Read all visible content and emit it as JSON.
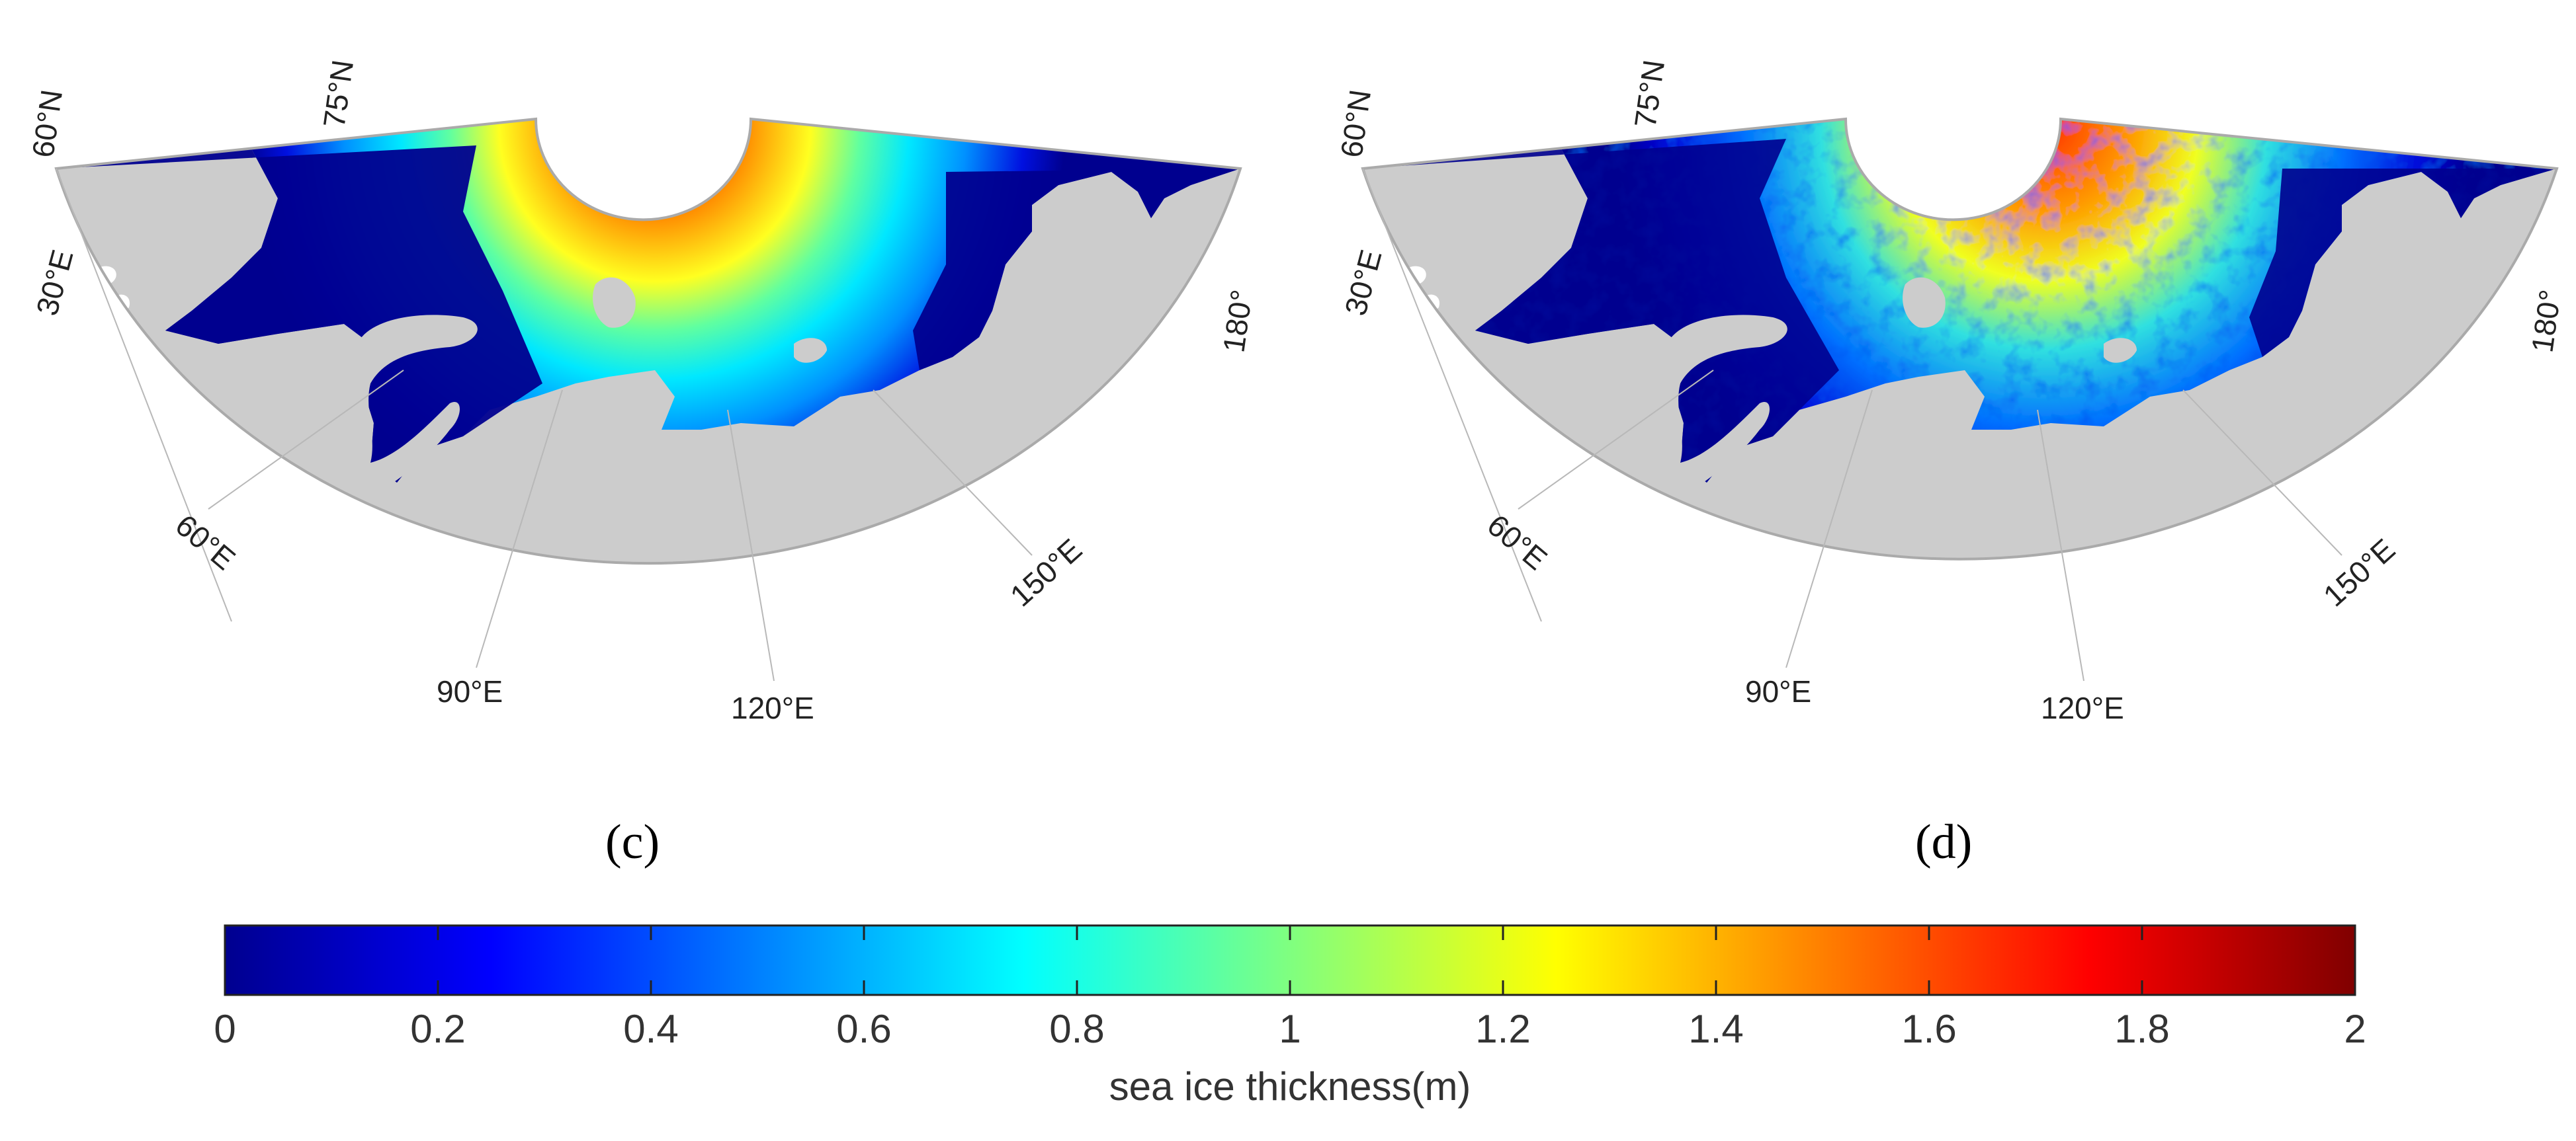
{
  "panels": [
    {
      "id": "c",
      "label": "(c)",
      "lat_labels": [
        "60°N",
        "75°N"
      ],
      "lon_labels": [
        "30°E",
        "60°E",
        "90°E",
        "120°E",
        "150°E",
        "180°"
      ]
    },
    {
      "id": "d",
      "label": "(d)",
      "lat_labels": [
        "60°N",
        "75°N"
      ],
      "lon_labels": [
        "30°E",
        "60°E",
        "90°E",
        "120°E",
        "150°E",
        "180°"
      ]
    }
  ],
  "colorbar": {
    "title": "sea ice thickness(m)",
    "min": 0,
    "max": 2,
    "ticks": [
      "0",
      "0.2",
      "0.4",
      "0.6",
      "0.8",
      "1",
      "1.2",
      "1.4",
      "1.6",
      "1.8",
      "2"
    ],
    "colormap": [
      "#00008f",
      "#0000ff",
      "#00ffff",
      "#ffff00",
      "#ff0000",
      "#800000"
    ]
  },
  "colors": {
    "land": "#cccccc",
    "ocean_open": "#00008f",
    "map_border": "#aaaaaa"
  }
}
